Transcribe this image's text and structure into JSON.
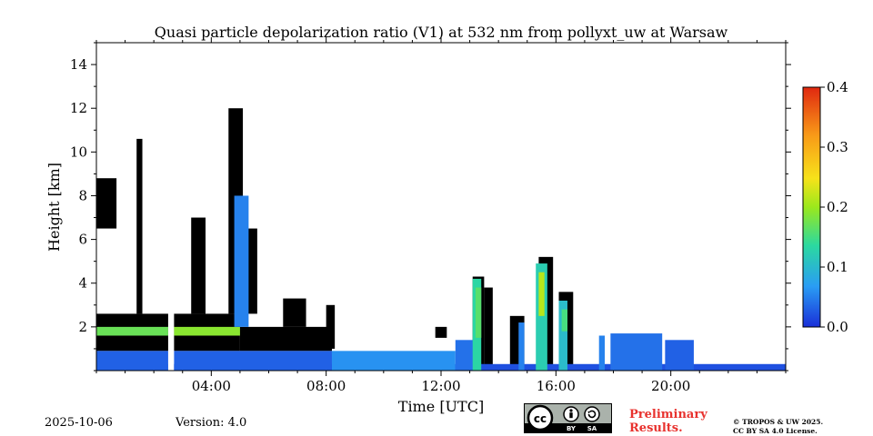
{
  "chart_data": {
    "type": "heatmap",
    "title": "Quasi particle depolarization ratio (V1) at 532 nm from pollyxt_uw at Warsaw",
    "xlabel": "Time [UTC]",
    "ylabel": "Height [km]",
    "xlim": [
      0,
      24
    ],
    "ylim": [
      0,
      15
    ],
    "xticks": [
      4,
      8,
      12,
      16,
      20
    ],
    "xtick_labels": [
      "04:00",
      "08:00",
      "12:00",
      "16:00",
      "20:00"
    ],
    "yticks": [
      2,
      4,
      6,
      8,
      10,
      12,
      14
    ],
    "ytick_labels": [
      "2",
      "4",
      "6",
      "8",
      "10",
      "12",
      "14"
    ],
    "colorbar": {
      "range": [
        0,
        0.4
      ],
      "ticks": [
        0.0,
        0.1,
        0.2,
        0.3,
        0.4
      ],
      "tick_labels": [
        "0.0",
        "0.1",
        "0.2",
        "0.3",
        "0.4"
      ],
      "colors": [
        "#1a2fd8",
        "#2a9df4",
        "#2bd9a0",
        "#9be81c",
        "#f7e21a",
        "#f89a18",
        "#e02810"
      ]
    },
    "colors": {
      "low": "#1a55e0",
      "mid": "#3fdc8a",
      "high": "#f3e43a",
      "no_data": "#000000",
      "masked": "#ffffff"
    },
    "background_fields": [
      {
        "t": [
          0,
          24
        ],
        "h": [
          0,
          0.3
        ],
        "value": 0.02
      }
    ],
    "low_layer_segments": [
      {
        "t": [
          0,
          2.5
        ],
        "h": [
          0,
          0.9
        ],
        "value": 0.03
      },
      {
        "t": [
          2.7,
          8.2
        ],
        "h": [
          0,
          0.9
        ],
        "value": 0.03
      },
      {
        "t": [
          8.2,
          12.5
        ],
        "h": [
          0,
          0.9
        ],
        "value": 0.06
      },
      {
        "t": [
          12.5,
          13.3
        ],
        "h": [
          0,
          1.4
        ],
        "value": 0.04
      }
    ],
    "depol_layer": [
      {
        "t": [
          0,
          2.5
        ],
        "h": [
          1.6,
          2.0
        ],
        "value": 0.17
      },
      {
        "t": [
          2.7,
          5.0
        ],
        "h": [
          1.6,
          2.0
        ],
        "value": 0.19
      }
    ],
    "black_blocks": [
      {
        "t": [
          0.0,
          2.5
        ],
        "h": [
          0.9,
          2.6
        ]
      },
      {
        "t": [
          2.7,
          5.0
        ],
        "h": [
          0.9,
          2.6
        ]
      },
      {
        "t": [
          5.0,
          8.2
        ],
        "h": [
          0.9,
          2.0
        ]
      },
      {
        "t": [
          1.4,
          1.6
        ],
        "h": [
          2.6,
          10.6
        ]
      },
      {
        "t": [
          0.0,
          0.7
        ],
        "h": [
          6.5,
          8.8
        ]
      },
      {
        "t": [
          3.3,
          3.8
        ],
        "h": [
          2.6,
          7.0
        ]
      },
      {
        "t": [
          4.6,
          5.1
        ],
        "h": [
          2.6,
          12.0
        ]
      },
      {
        "t": [
          5.1,
          5.6
        ],
        "h": [
          2.6,
          6.5
        ]
      },
      {
        "t": [
          6.5,
          7.3
        ],
        "h": [
          2.0,
          3.3
        ]
      },
      {
        "t": [
          8.0,
          8.3
        ],
        "h": [
          1.0,
          3.0
        ]
      },
      {
        "t": [
          11.8,
          12.2
        ],
        "h": [
          1.5,
          2.0
        ]
      },
      {
        "t": [
          13.1,
          13.5
        ],
        "h": [
          0.0,
          4.3
        ]
      },
      {
        "t": [
          13.5,
          13.8
        ],
        "h": [
          0.0,
          3.8
        ]
      },
      {
        "t": [
          14.4,
          14.9
        ],
        "h": [
          0.0,
          2.5
        ]
      },
      {
        "t": [
          15.4,
          15.9
        ],
        "h": [
          0.0,
          5.2
        ]
      },
      {
        "t": [
          16.1,
          16.6
        ],
        "h": [
          0.0,
          3.6
        ]
      }
    ],
    "blue_columns": [
      {
        "t": [
          4.8,
          5.3
        ],
        "h": [
          2.0,
          8.0
        ],
        "value": 0.05
      },
      {
        "t": [
          13.1,
          13.4
        ],
        "h": [
          0.0,
          4.2
        ],
        "value": 0.13
      },
      {
        "t": [
          14.7,
          14.9
        ],
        "h": [
          0.0,
          2.2
        ],
        "value": 0.05
      },
      {
        "t": [
          15.3,
          15.7
        ],
        "h": [
          0.0,
          4.9
        ],
        "value": 0.12
      },
      {
        "t": [
          16.1,
          16.4
        ],
        "h": [
          0.0,
          3.2
        ],
        "value": 0.1
      },
      {
        "t": [
          17.5,
          17.7
        ],
        "h": [
          0.0,
          1.6
        ],
        "value": 0.05
      },
      {
        "t": [
          17.9,
          19.7
        ],
        "h": [
          0.0,
          1.7
        ],
        "value": 0.04
      },
      {
        "t": [
          19.8,
          20.8
        ],
        "h": [
          0.0,
          1.4
        ],
        "value": 0.03
      }
    ],
    "green_spots": [
      {
        "t": [
          13.2,
          13.4
        ],
        "h": [
          1.5,
          3.8
        ],
        "value": 0.16
      },
      {
        "t": [
          15.4,
          15.6
        ],
        "h": [
          2.5,
          4.5
        ],
        "value": 0.22
      },
      {
        "t": [
          16.2,
          16.4
        ],
        "h": [
          1.8,
          2.8
        ],
        "value": 0.15
      }
    ],
    "gaps": [
      {
        "t": [
          2.5,
          2.7
        ]
      },
      {
        "t": [
          2.55,
          2.62
        ]
      }
    ]
  },
  "footer": {
    "date": "2025-10-06",
    "version": "Version: 4.0",
    "license_badge": [
      "cc-icon",
      "by-icon",
      "sa-icon"
    ],
    "license_badge_labels": [
      "BY",
      "SA"
    ],
    "preliminary_line1": "Preliminary",
    "preliminary_line2": "Results.",
    "copyright_line1": "© TROPOS & UW 2025.",
    "copyright_line2": "CC BY SA 4.0 License."
  }
}
